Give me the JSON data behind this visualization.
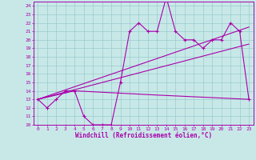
{
  "xlabel": "Windchill (Refroidissement éolien,°C)",
  "xlim": [
    -0.5,
    23.5
  ],
  "ylim": [
    10,
    24.5
  ],
  "xticks": [
    0,
    1,
    2,
    3,
    4,
    5,
    6,
    7,
    8,
    9,
    10,
    11,
    12,
    13,
    14,
    15,
    16,
    17,
    18,
    19,
    20,
    21,
    22,
    23
  ],
  "yticks": [
    10,
    11,
    12,
    13,
    14,
    15,
    16,
    17,
    18,
    19,
    20,
    21,
    22,
    23,
    24
  ],
  "bg_color": "#c8e8e8",
  "line_color": "#aa00aa",
  "grid_color": "#99cccc",
  "series1_x": [
    0,
    1,
    2,
    3,
    4,
    5,
    6,
    7,
    8,
    9,
    10,
    11,
    12,
    13,
    14,
    15,
    16,
    17,
    18,
    19,
    20,
    21,
    22,
    23
  ],
  "series1_y": [
    13,
    12,
    13,
    14,
    14,
    11,
    10,
    10,
    10,
    15,
    21,
    22,
    21,
    21,
    25,
    21,
    20,
    20,
    19,
    20,
    20,
    22,
    21,
    13
  ],
  "series2_x": [
    0,
    4,
    13,
    23
  ],
  "series2_y": [
    13,
    14,
    13.5,
    13
  ],
  "series3_x": [
    0,
    23
  ],
  "series3_y": [
    13,
    19.5
  ],
  "series4_x": [
    0,
    23
  ],
  "series4_y": [
    13,
    21.5
  ]
}
